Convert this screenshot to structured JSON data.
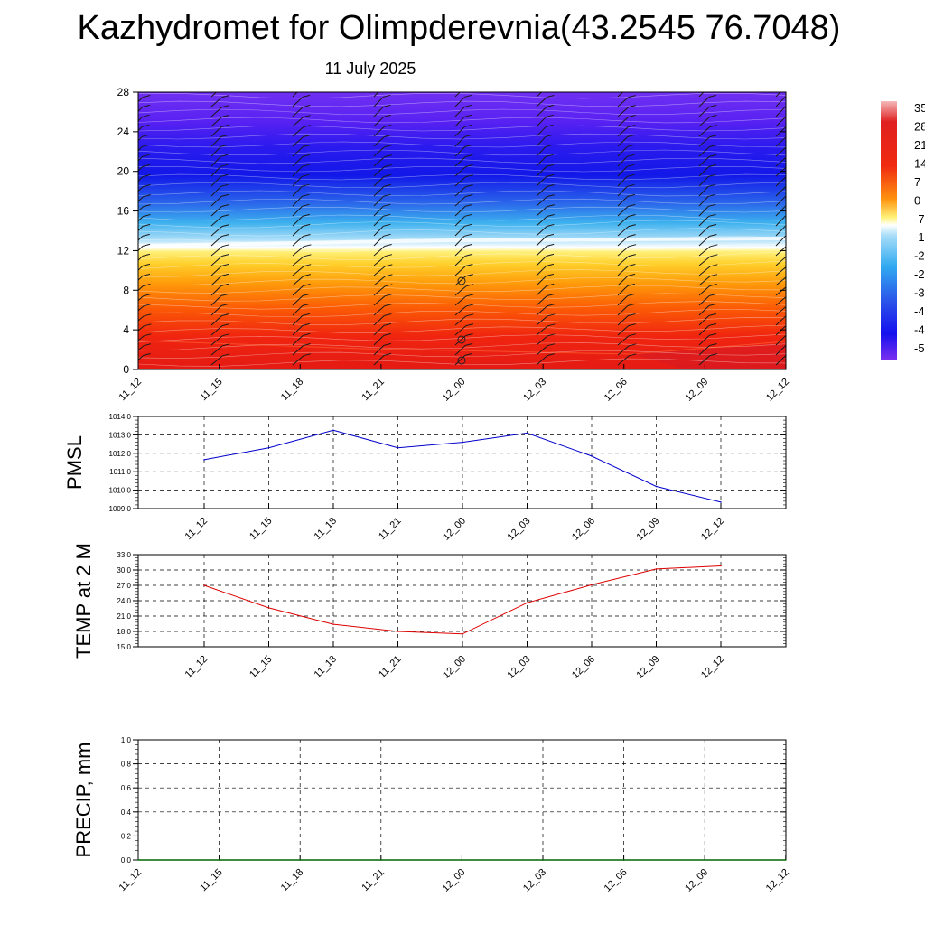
{
  "header": {
    "title": "Kazhydromet for Olimpderevnia(43.2545 76.7048)",
    "subtitle": "11 July 2025"
  },
  "chart_data": [
    {
      "type": "heatmap",
      "ylim": [
        0,
        28
      ],
      "yticks": [
        0,
        4,
        8,
        12,
        16,
        20,
        24,
        28
      ],
      "x_ticklabels": [
        "11_12",
        "11_15",
        "11_18",
        "11_21",
        "12_00",
        "12_03",
        "12_06",
        "12_09",
        "12_12"
      ],
      "colorbar_labels": [
        "35",
        "28",
        "21",
        "14",
        "7",
        "0",
        "-7",
        "-1",
        "-2",
        "-2",
        "-3",
        "-4",
        "-4",
        "-5"
      ],
      "colors": {
        "hot": "#e8201a",
        "warm": "#ff8800",
        "yellow": "#ffe84a",
        "cyan": "#3cb4f0",
        "blue": "#1a1aee",
        "purple": "#6c2cf0"
      }
    },
    {
      "type": "line",
      "ylabel": "PMSL",
      "ylim": [
        1009.0,
        1014.0
      ],
      "yticks": [
        "1009.0",
        "1010.0",
        "1011.0",
        "1012.0",
        "1013.0",
        "1014.0"
      ],
      "x_ticklabels": [
        "11_12",
        "11_15",
        "11_18",
        "11_21",
        "12_00",
        "12_03",
        "12_06",
        "12_09",
        "12_12"
      ],
      "values": [
        1011.65,
        1012.3,
        1013.25,
        1012.3,
        1012.6,
        1013.1,
        1011.85,
        1010.2,
        1009.35
      ],
      "color": "#0000cc"
    },
    {
      "type": "line",
      "ylabel": "TEMP at 2 M",
      "ylim": [
        15.0,
        33.0
      ],
      "yticks": [
        "15.0",
        "18.0",
        "21.0",
        "24.0",
        "27.0",
        "30.0",
        "33.0"
      ],
      "x_ticklabels": [
        "11_12",
        "11_15",
        "11_18",
        "11_21",
        "12_00",
        "12_03",
        "12_06",
        "12_09",
        "12_12"
      ],
      "values": [
        27.0,
        22.6,
        19.4,
        18.0,
        17.5,
        23.6,
        27.1,
        30.2,
        30.8
      ],
      "color": "#dd0000"
    },
    {
      "type": "line",
      "ylabel": "PRECIP, mm",
      "ylim": [
        0.0,
        1.0
      ],
      "yticks": [
        "0.0",
        "0.2",
        "0.4",
        "0.6",
        "0.8",
        "1.0"
      ],
      "x_ticklabels": [
        "11_12",
        "11_15",
        "11_18",
        "11_21",
        "12_00",
        "12_03",
        "12_06",
        "12_09",
        "12_12"
      ],
      "values": [
        0,
        0,
        0,
        0,
        0,
        0,
        0,
        0,
        0
      ],
      "color": "#006600"
    }
  ]
}
